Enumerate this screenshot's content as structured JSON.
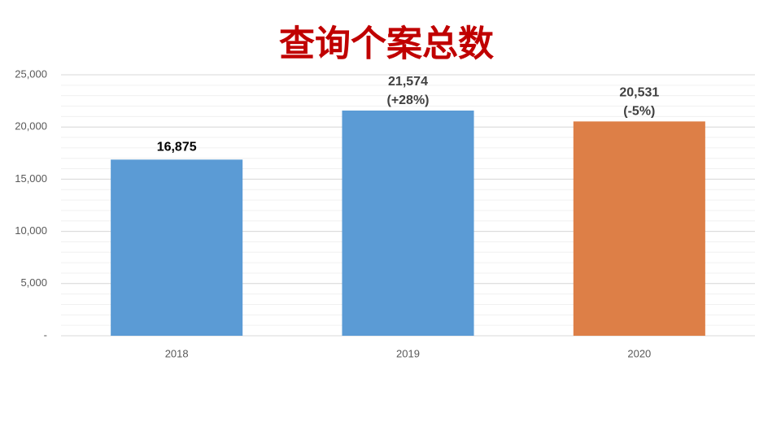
{
  "chart_data": {
    "type": "bar",
    "title": "查询个案总数",
    "categories": [
      "2018",
      "2019",
      "2020"
    ],
    "values": [
      16875,
      21574,
      20531
    ],
    "value_labels": [
      "16,875",
      "21,574",
      "20,531"
    ],
    "change_labels": [
      null,
      "(+28%)",
      "(-5%)"
    ],
    "colors": [
      "#5b9bd5",
      "#5b9bd5",
      "#dd7f47"
    ],
    "ylim": [
      0,
      25000
    ],
    "yticks": [
      {
        "value": 0,
        "label": "-"
      },
      {
        "value": 5000,
        "label": "5,000"
      },
      {
        "value": 10000,
        "label": "10,000"
      },
      {
        "value": 15000,
        "label": "15,000"
      },
      {
        "value": 20000,
        "label": "20,000"
      },
      {
        "value": 25000,
        "label": "25,000"
      }
    ],
    "grid": true,
    "minor_grid_step": 1000
  }
}
